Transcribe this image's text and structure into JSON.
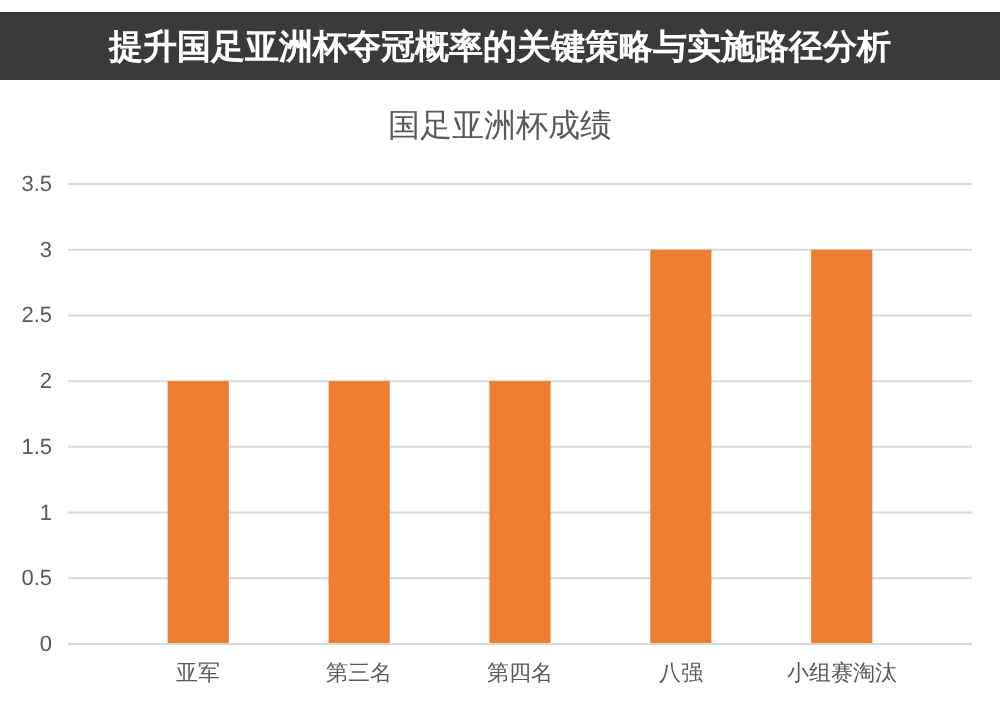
{
  "chart_data": {
    "type": "bar",
    "title": "国足亚洲杯成绩",
    "annotations": [
      "提升国足亚洲杯夺冠概率的关键策略与实施路径分析"
    ],
    "categories": [
      "亚军",
      "第三名",
      "第四名",
      "八强",
      "小组赛淘汰"
    ],
    "values": [
      2,
      2,
      2,
      3,
      3
    ],
    "color": "#ed7d31",
    "ylim": [
      0,
      3.5
    ],
    "yticks": [
      0,
      0.5,
      1,
      1.5,
      2,
      2.5,
      3,
      3.5
    ],
    "grid": "y"
  }
}
